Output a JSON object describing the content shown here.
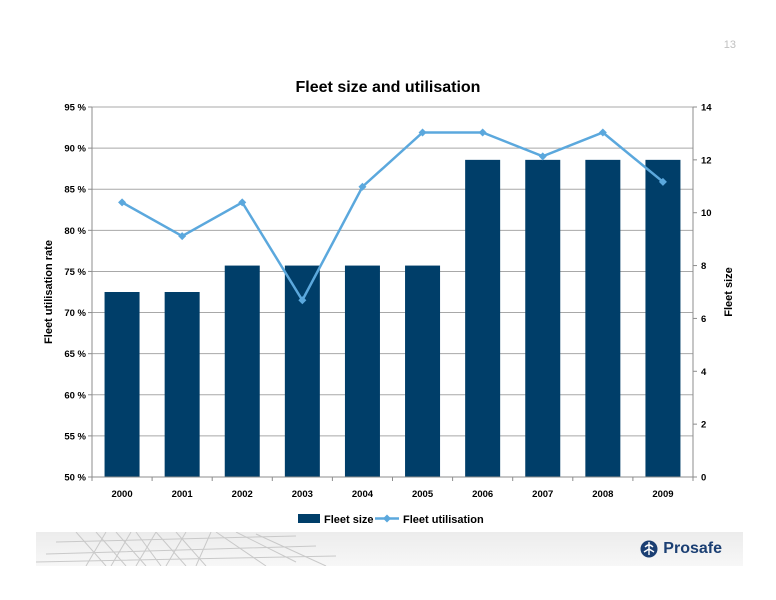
{
  "page": {
    "number": "13"
  },
  "colors": {
    "bar": "#003E69",
    "line": "#5BA8DD",
    "axis": "#8C8C8C",
    "grid": "#A8A8A8",
    "text": "#000000"
  },
  "brand": {
    "name": "Prosafe",
    "logo_icon": "prosafe-rig-icon",
    "color": "#1B3F73"
  },
  "chart_data": {
    "type": "bar",
    "title": "Fleet size and utilisation",
    "categories": [
      "2000",
      "2001",
      "2002",
      "2003",
      "2004",
      "2005",
      "2006",
      "2007",
      "2008",
      "2009"
    ],
    "series": [
      {
        "name": "Fleet size",
        "type": "bar",
        "axis": "right",
        "values": [
          7,
          7,
          8,
          8,
          8,
          8,
          12,
          12,
          12,
          12
        ]
      },
      {
        "name": "Fleet utilisation",
        "type": "line",
        "axis": "left",
        "values": [
          83.4,
          79.3,
          83.4,
          71.5,
          85.3,
          91.9,
          91.9,
          89.0,
          91.9,
          85.9
        ]
      }
    ],
    "y_left": {
      "label": "Fleet utilisation rate",
      "min": 50,
      "max": 95,
      "ticks": [
        "50 %",
        "55 %",
        "60 %",
        "65 %",
        "70 %",
        "75 %",
        "80 %",
        "85 %",
        "90 %",
        "95 %"
      ]
    },
    "y_right": {
      "label": "Fleet size",
      "min": 0,
      "max": 14,
      "ticks": [
        "0",
        "2",
        "4",
        "6",
        "8",
        "10",
        "12",
        "14"
      ]
    },
    "grid": true,
    "legend": {
      "position": "bottom",
      "entries": [
        "Fleet size",
        "Fleet utilisation"
      ]
    }
  }
}
